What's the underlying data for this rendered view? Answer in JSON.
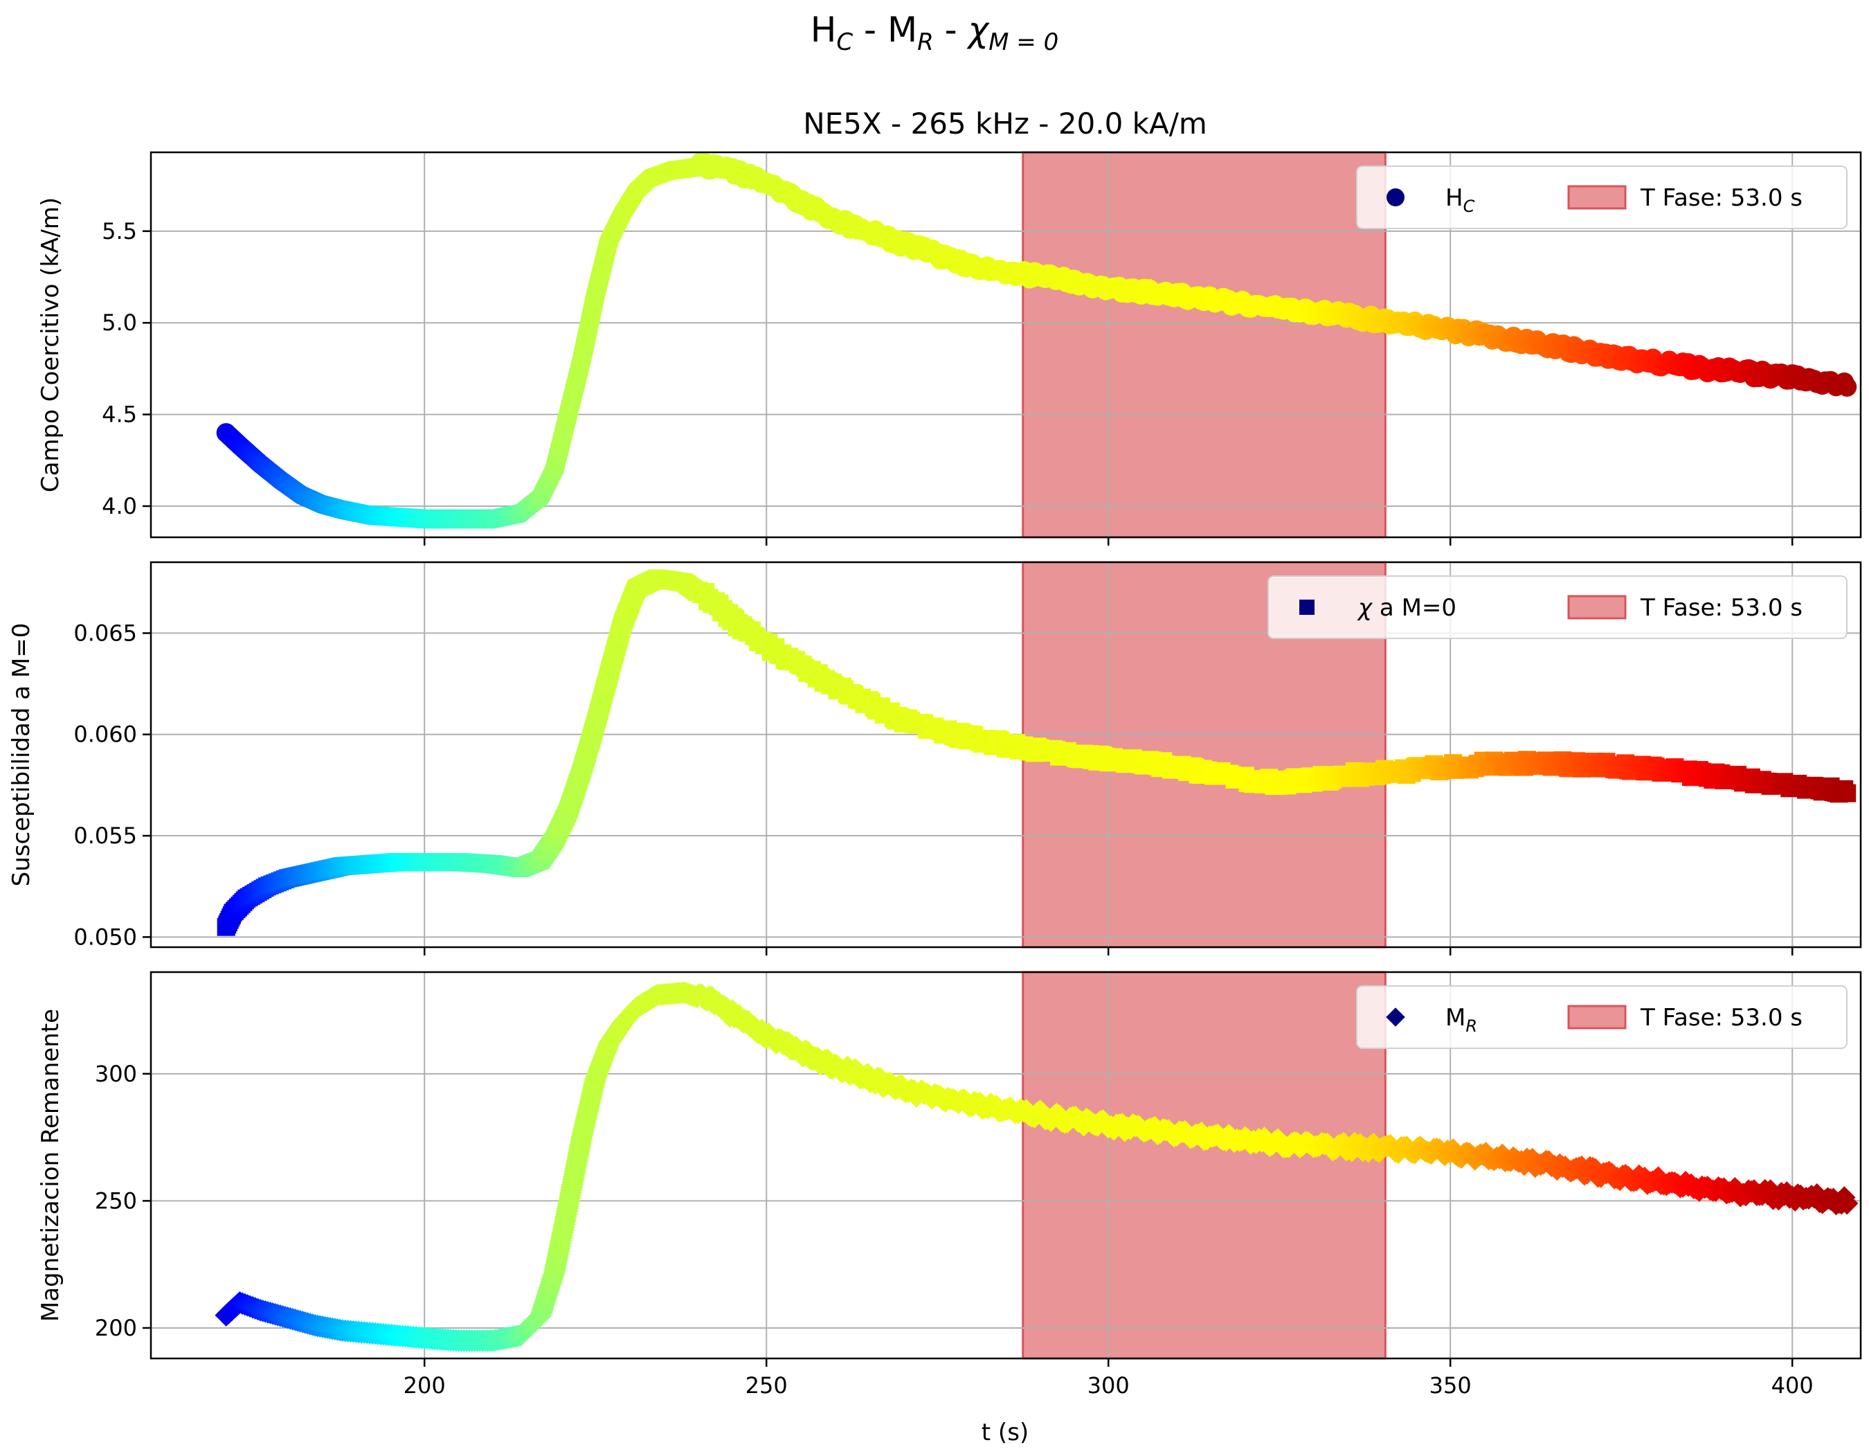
{
  "figure": {
    "suptitle": {
      "base1": "H",
      "sub1": "C",
      "sep1": " - ",
      "base2": "M",
      "sub2": "R",
      "sep2": " - ",
      "base3": "χ",
      "sub3": "M = 0"
    },
    "subtitle": "NE5X - 265 kHz - 20.0 kA/m",
    "xlabel": "t (s)",
    "colors": {
      "phase_fill": "#e99497",
      "phase_edge": "#d9545a",
      "grid": "#b0b0b0",
      "marker_legend": "#00007f"
    }
  },
  "chart_data": [
    {
      "type": "scatter",
      "ylabel": "Campo Coercitivo (kA/m)",
      "marker": "circle",
      "xlim": [
        160,
        410
      ],
      "ylim": [
        3.83,
        5.93
      ],
      "xticks": [
        200,
        250,
        300,
        350,
        400
      ],
      "yticks": [
        4.0,
        4.5,
        5.0,
        5.5
      ],
      "ytick_labels": [
        "4.0",
        "4.5",
        "5.0",
        "5.5"
      ],
      "legend": {
        "series": {
          "base": "H",
          "sub": "C"
        },
        "phase": "T Fase: 53.0 s",
        "placement": "upper right"
      },
      "phase_span": [
        287.5,
        340.5
      ],
      "series": {
        "x": [
          171,
          173,
          176,
          179,
          182,
          185,
          188,
          192,
          196,
          200,
          205,
          210,
          214,
          217,
          219,
          221,
          223,
          225,
          227,
          229,
          231,
          233,
          236,
          240,
          245,
          250,
          260,
          270,
          280,
          290,
          300,
          310,
          320,
          330,
          340,
          350,
          360,
          370,
          380,
          390,
          400,
          408
        ],
        "y": [
          4.4,
          4.33,
          4.23,
          4.14,
          4.06,
          4.01,
          3.98,
          3.95,
          3.94,
          3.93,
          3.93,
          3.93,
          3.96,
          4.05,
          4.2,
          4.5,
          4.8,
          5.15,
          5.45,
          5.6,
          5.72,
          5.79,
          5.83,
          5.85,
          5.82,
          5.75,
          5.55,
          5.42,
          5.3,
          5.24,
          5.18,
          5.14,
          5.09,
          5.05,
          5.0,
          4.95,
          4.89,
          4.83,
          4.77,
          4.73,
          4.69,
          4.65
        ]
      }
    },
    {
      "type": "scatter",
      "ylabel": "Susceptibilidad a M=0",
      "marker": "square",
      "xlim": [
        160,
        410
      ],
      "ylim": [
        0.0495,
        0.0685
      ],
      "xticks": [
        200,
        250,
        300,
        350,
        400
      ],
      "yticks": [
        0.05,
        0.055,
        0.06,
        0.065
      ],
      "ytick_labels": [
        "0.050",
        "0.055",
        "0.060",
        "0.065"
      ],
      "legend": {
        "series": "χ a M=0",
        "phase": "T Fase: 53.0 s",
        "placement": "upper right"
      },
      "phase_span": [
        287.5,
        340.5
      ],
      "series": {
        "x": [
          171,
          172,
          174,
          177,
          180,
          184,
          188,
          192,
          196,
          200,
          205,
          210,
          214,
          217,
          219,
          221,
          223,
          225,
          227,
          229,
          231,
          234,
          238,
          242,
          246,
          250,
          255,
          260,
          265,
          270,
          280,
          290,
          300,
          310,
          320,
          325,
          330,
          340,
          350,
          360,
          370,
          380,
          390,
          400,
          408
        ],
        "y": [
          0.0505,
          0.0512,
          0.0519,
          0.0525,
          0.0529,
          0.0532,
          0.0535,
          0.0536,
          0.0537,
          0.0537,
          0.0537,
          0.0536,
          0.0534,
          0.0538,
          0.0548,
          0.0562,
          0.0582,
          0.0605,
          0.063,
          0.0655,
          0.0672,
          0.0677,
          0.0675,
          0.0665,
          0.0653,
          0.0643,
          0.0633,
          0.0623,
          0.0614,
          0.0606,
          0.0597,
          0.0591,
          0.0587,
          0.0583,
          0.0577,
          0.0575,
          0.0577,
          0.058,
          0.0583,
          0.0585,
          0.0584,
          0.0582,
          0.0578,
          0.0574,
          0.0571
        ]
      }
    },
    {
      "type": "scatter",
      "ylabel": "Magnetizacion Remanente",
      "marker": "diamond",
      "xlim": [
        160,
        410
      ],
      "ylim": [
        188,
        340
      ],
      "xticks": [
        200,
        250,
        300,
        350,
        400
      ],
      "xtick_labels": [
        "200",
        "250",
        "300",
        "350",
        "400"
      ],
      "yticks": [
        200,
        250,
        300
      ],
      "ytick_labels": [
        "200",
        "250",
        "300"
      ],
      "legend": {
        "series": {
          "base": "M",
          "sub": "R"
        },
        "phase": "T Fase: 53.0 s",
        "placement": "upper right"
      },
      "phase_span": [
        287.5,
        340.5
      ],
      "series": {
        "x": [
          171,
          173,
          176,
          180,
          184,
          188,
          192,
          196,
          200,
          205,
          210,
          214,
          217,
          219,
          221,
          223,
          225,
          227,
          229,
          231,
          234,
          238,
          242,
          246,
          250,
          260,
          270,
          280,
          290,
          300,
          310,
          320,
          330,
          340,
          350,
          360,
          370,
          380,
          390,
          400,
          408
        ],
        "y": [
          205,
          210,
          207,
          204,
          201,
          199,
          198,
          197,
          196,
          195,
          195,
          197,
          205,
          222,
          248,
          275,
          298,
          312,
          320,
          326,
          331,
          332,
          328,
          321,
          314,
          302,
          293,
          287,
          283,
          279,
          276,
          273,
          271,
          270,
          268,
          265,
          261,
          257,
          253,
          251,
          249
        ]
      }
    }
  ]
}
